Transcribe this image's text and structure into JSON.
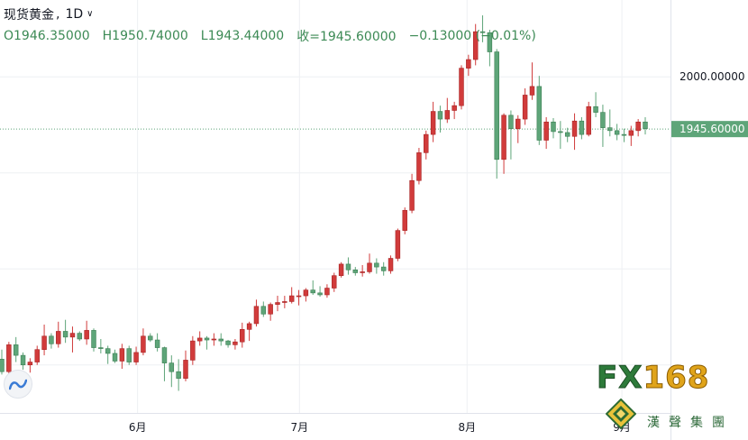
{
  "header": {
    "symbol": "现货黄金",
    "separator": ",",
    "interval": "1D",
    "dropdown_icon": "chevron-down-icon",
    "open": "O1946.35000",
    "high": "H1950.74000",
    "low": "L1943.44000",
    "close": "收=1945.60000",
    "change": "−0.13000 (−0.01%)"
  },
  "price_axis": {
    "tick_labels": [
      "2000.00000"
    ],
    "last_price_label": "1945.60000"
  },
  "time_axis": {
    "tick_labels": [
      "6月",
      "7月",
      "8月",
      "9月"
    ]
  },
  "logo": {
    "brand": "FX168",
    "brand_prefix": "FX",
    "brand_suffix": "168",
    "subtitle": "漢聲集團"
  },
  "colors": {
    "up": "#d13b3b",
    "down": "#5ea579",
    "price_line": "#5ea579",
    "header_values": "#3c8a55"
  },
  "chart_data": {
    "type": "candlestick",
    "title": "现货黄金, 1D",
    "ylim": [
      1650,
      2080
    ],
    "y_ticks": [
      2000
    ],
    "last_price": 1945.6,
    "x_ticks": [
      {
        "label": "6月",
        "date": "2020-06-01"
      },
      {
        "label": "7月",
        "date": "2020-07-01"
      },
      {
        "label": "8月",
        "date": "2020-08-03"
      },
      {
        "label": "9月",
        "date": "2020-09-01"
      }
    ],
    "candles": [
      [
        1706,
        1716,
        1690,
        1693
      ],
      [
        1693,
        1724,
        1685,
        1721
      ],
      [
        1721,
        1729,
        1703,
        1710
      ],
      [
        1710,
        1713,
        1695,
        1700
      ],
      [
        1700,
        1707,
        1692,
        1703
      ],
      [
        1703,
        1720,
        1700,
        1716
      ],
      [
        1716,
        1742,
        1710,
        1730
      ],
      [
        1730,
        1733,
        1717,
        1722
      ],
      [
        1722,
        1745,
        1718,
        1735
      ],
      [
        1735,
        1747,
        1723,
        1729
      ],
      [
        1729,
        1740,
        1713,
        1733
      ],
      [
        1733,
        1735,
        1725,
        1727
      ],
      [
        1727,
        1746,
        1721,
        1736
      ],
      [
        1736,
        1738,
        1714,
        1718
      ],
      [
        1718,
        1727,
        1712,
        1717
      ],
      [
        1717,
        1720,
        1701,
        1712
      ],
      [
        1712,
        1716,
        1702,
        1704
      ],
      [
        1704,
        1722,
        1696,
        1717
      ],
      [
        1717,
        1720,
        1700,
        1703
      ],
      [
        1703,
        1719,
        1700,
        1713
      ],
      [
        1713,
        1738,
        1710,
        1730
      ],
      [
        1730,
        1733,
        1724,
        1726
      ],
      [
        1726,
        1733,
        1714,
        1718
      ],
      [
        1718,
        1719,
        1683,
        1702
      ],
      [
        1702,
        1710,
        1677,
        1693
      ],
      [
        1693,
        1706,
        1673,
        1686
      ],
      [
        1686,
        1715,
        1683,
        1705
      ],
      [
        1705,
        1730,
        1700,
        1725
      ],
      [
        1725,
        1735,
        1720,
        1728
      ],
      [
        1728,
        1730,
        1716,
        1726
      ],
      [
        1726,
        1733,
        1720,
        1727
      ],
      [
        1727,
        1733,
        1720,
        1725
      ],
      [
        1725,
        1726,
        1718,
        1721
      ],
      [
        1721,
        1727,
        1716,
        1724
      ],
      [
        1724,
        1744,
        1718,
        1737
      ],
      [
        1737,
        1745,
        1725,
        1743
      ],
      [
        1743,
        1768,
        1740,
        1761
      ],
      [
        1761,
        1766,
        1750,
        1753
      ],
      [
        1753,
        1765,
        1746,
        1763
      ],
      [
        1763,
        1772,
        1756,
        1765
      ],
      [
        1765,
        1772,
        1759,
        1766
      ],
      [
        1766,
        1781,
        1764,
        1772
      ],
      [
        1772,
        1778,
        1762,
        1772
      ],
      [
        1772,
        1780,
        1766,
        1778
      ],
      [
        1778,
        1788,
        1773,
        1775
      ],
      [
        1775,
        1782,
        1771,
        1773
      ],
      [
        1773,
        1784,
        1770,
        1780
      ],
      [
        1780,
        1796,
        1776,
        1793
      ],
      [
        1793,
        1807,
        1791,
        1805
      ],
      [
        1805,
        1812,
        1794,
        1799
      ],
      [
        1799,
        1802,
        1793,
        1796
      ],
      [
        1796,
        1804,
        1792,
        1797
      ],
      [
        1797,
        1816,
        1795,
        1806
      ],
      [
        1806,
        1811,
        1795,
        1802
      ],
      [
        1802,
        1807,
        1793,
        1798
      ],
      [
        1798,
        1814,
        1795,
        1811
      ],
      [
        1811,
        1842,
        1808,
        1840
      ],
      [
        1840,
        1864,
        1836,
        1861
      ],
      [
        1861,
        1899,
        1858,
        1892
      ],
      [
        1892,
        1926,
        1888,
        1921
      ],
      [
        1921,
        1944,
        1914,
        1940
      ],
      [
        1940,
        1974,
        1932,
        1964
      ],
      [
        1964,
        1970,
        1942,
        1956
      ],
      [
        1956,
        1978,
        1952,
        1965
      ],
      [
        1965,
        1974,
        1956,
        1970
      ],
      [
        1970,
        2012,
        1966,
        2009
      ],
      [
        2009,
        2023,
        2001,
        2018
      ],
      [
        2018,
        2055,
        2012,
        2047
      ],
      [
        2047,
        2064,
        2036,
        2046
      ],
      [
        2046,
        2049,
        2011,
        2026
      ],
      [
        2026,
        2029,
        1894,
        1914
      ],
      [
        1914,
        1962,
        1899,
        1960
      ],
      [
        1960,
        1965,
        1914,
        1946
      ],
      [
        1946,
        1960,
        1931,
        1956
      ],
      [
        1956,
        1988,
        1950,
        1981
      ],
      [
        1981,
        2015,
        1976,
        1990
      ],
      [
        1990,
        2001,
        1929,
        1934
      ],
      [
        1934,
        1958,
        1925,
        1953
      ],
      [
        1953,
        1957,
        1936,
        1943
      ],
      [
        1943,
        1954,
        1925,
        1942
      ],
      [
        1942,
        1947,
        1932,
        1938
      ],
      [
        1938,
        1962,
        1924,
        1954
      ],
      [
        1954,
        1958,
        1935,
        1940
      ],
      [
        1940,
        1974,
        1938,
        1969
      ],
      [
        1969,
        1984,
        1958,
        1963
      ],
      [
        1963,
        1971,
        1927,
        1947
      ],
      [
        1947,
        1966,
        1938,
        1944
      ],
      [
        1944,
        1951,
        1934,
        1940
      ],
      [
        1940,
        1946,
        1932,
        1939
      ],
      [
        1939,
        1949,
        1928,
        1944
      ],
      [
        1944,
        1956,
        1938,
        1953
      ],
      [
        1953,
        1958,
        1940,
        1946
      ]
    ]
  }
}
